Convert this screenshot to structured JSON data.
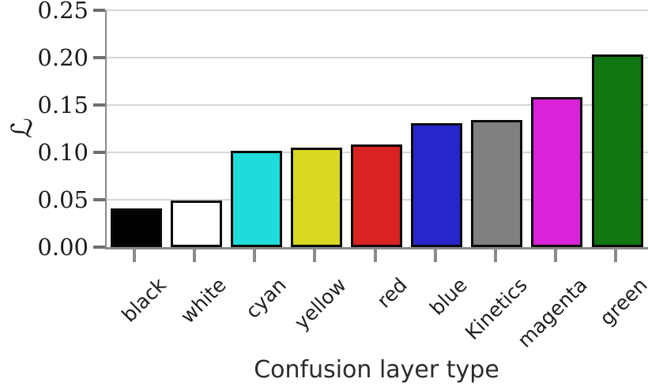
{
  "chart_data": {
    "type": "bar",
    "title": "",
    "xlabel": "Confusion layer type",
    "ylabel": "ℒ",
    "categories": [
      "black",
      "white",
      "cyan",
      "yellow",
      "red",
      "blue",
      "Kinetics",
      "magenta",
      "green"
    ],
    "values": [
      0.041,
      0.049,
      0.102,
      0.105,
      0.108,
      0.131,
      0.134,
      0.158,
      0.203
    ],
    "bar_colors": [
      "#000000",
      "#ffffff",
      "#1edcdc",
      "#d9d922",
      "#d92222",
      "#2626cc",
      "#808080",
      "#d922d9",
      "#117511"
    ],
    "bar_edge_color": "#0a0a0a",
    "ylim": [
      0,
      0.25
    ],
    "ytick_labels": [
      "0.00",
      "0.05",
      "0.10",
      "0.15",
      "0.20",
      "0.25"
    ],
    "ytick_values": [
      0.0,
      0.05,
      0.1,
      0.15,
      0.2,
      0.25
    ],
    "grid": "horizontal",
    "legend": "none"
  }
}
